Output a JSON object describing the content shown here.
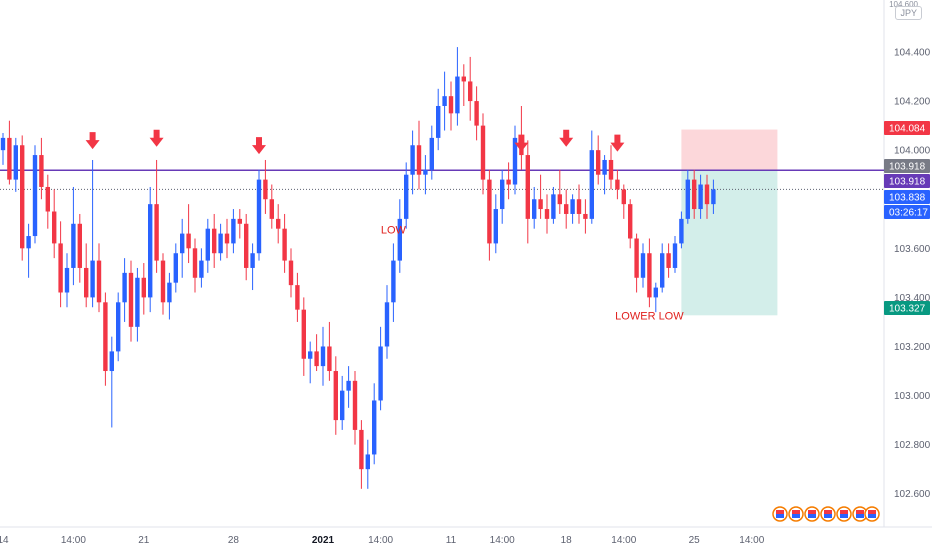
{
  "currency": "JPY",
  "price_top_clipped": "104.600",
  "chart_data": {
    "type": "candlestick",
    "title": "",
    "xlabel": "",
    "ylabel": "",
    "ylim": [
      102.5,
      104.6
    ],
    "y_ticks": [
      "104.400",
      "104.200",
      "104.000",
      "103.800",
      "103.600",
      "103.400",
      "103.200",
      "103.000",
      "102.800",
      "102.600"
    ],
    "x_ticks": [
      {
        "i": 0,
        "label": "14"
      },
      {
        "i": 11,
        "label": "14:00"
      },
      {
        "i": 22,
        "label": "21"
      },
      {
        "i": 36,
        "label": "28"
      },
      {
        "i": 50,
        "label": "2021",
        "bold": true
      },
      {
        "i": 59,
        "label": "14:00"
      },
      {
        "i": 70,
        "label": "11"
      },
      {
        "i": 78,
        "label": "14:00"
      },
      {
        "i": 88,
        "label": "18"
      },
      {
        "i": 97,
        "label": "14:00"
      },
      {
        "i": 108,
        "label": "25"
      },
      {
        "i": 117,
        "label": "14:00"
      }
    ],
    "resistance_level": 103.918,
    "price_labels": [
      {
        "value": "104.084",
        "color": "#f23645"
      },
      {
        "value": "103.918",
        "color": "#787b86"
      },
      {
        "value": "103.918",
        "color": "#673ab7"
      },
      {
        "value": "103.838",
        "color": "#2962ff"
      },
      {
        "value": "03:26:17",
        "color": "#2962ff"
      },
      {
        "value": "103.327",
        "color": "#089981"
      }
    ],
    "position": {
      "entry": 103.918,
      "stop": 104.084,
      "target": 103.327,
      "start_i": 106,
      "end_i": 121
    },
    "annotations": [
      {
        "i": 61,
        "price": 103.66,
        "text": "LOW"
      },
      {
        "i": 101,
        "price": 103.31,
        "text": "LOWER LOW"
      }
    ],
    "arrows": [
      {
        "i": 14,
        "price": 104.0
      },
      {
        "i": 24,
        "price": 104.01
      },
      {
        "i": 40,
        "price": 103.98
      },
      {
        "i": 81,
        "price": 103.99
      },
      {
        "i": 88,
        "price": 104.01
      },
      {
        "i": 96,
        "price": 103.99
      }
    ],
    "colors": {
      "up": "#2962ff",
      "down": "#f23645",
      "resistance": "#673ab7"
    },
    "candles": [
      [
        104.0,
        104.07,
        103.94,
        104.05
      ],
      [
        104.05,
        104.12,
        103.86,
        103.88
      ],
      [
        103.88,
        104.05,
        103.83,
        104.02
      ],
      [
        104.02,
        104.06,
        103.55,
        103.6
      ],
      [
        103.6,
        103.7,
        103.48,
        103.65
      ],
      [
        103.65,
        104.02,
        103.62,
        103.98
      ],
      [
        103.98,
        104.05,
        103.8,
        103.85
      ],
      [
        103.85,
        103.9,
        103.68,
        103.75
      ],
      [
        103.75,
        103.84,
        103.56,
        103.62
      ],
      [
        103.62,
        103.71,
        103.36,
        103.42
      ],
      [
        103.42,
        103.58,
        103.36,
        103.52
      ],
      [
        103.52,
        103.85,
        103.45,
        103.7
      ],
      [
        103.7,
        103.74,
        103.46,
        103.52
      ],
      [
        103.52,
        103.62,
        103.36,
        103.4
      ],
      [
        103.4,
        103.96,
        103.36,
        103.55
      ],
      [
        103.55,
        103.62,
        103.34,
        103.38
      ],
      [
        103.38,
        103.42,
        103.04,
        103.1
      ],
      [
        103.1,
        103.24,
        102.87,
        103.18
      ],
      [
        103.18,
        103.42,
        103.14,
        103.38
      ],
      [
        103.38,
        103.56,
        103.3,
        103.5
      ],
      [
        103.5,
        103.55,
        103.22,
        103.28
      ],
      [
        103.28,
        103.52,
        103.22,
        103.48
      ],
      [
        103.48,
        103.54,
        103.33,
        103.4
      ],
      [
        103.4,
        103.85,
        103.34,
        103.78
      ],
      [
        103.78,
        103.96,
        103.5,
        103.55
      ],
      [
        103.55,
        103.58,
        103.33,
        103.38
      ],
      [
        103.38,
        103.5,
        103.31,
        103.46
      ],
      [
        103.46,
        103.62,
        103.42,
        103.58
      ],
      [
        103.58,
        103.72,
        103.48,
        103.66
      ],
      [
        103.66,
        103.78,
        103.54,
        103.6
      ],
      [
        103.6,
        103.64,
        103.42,
        103.48
      ],
      [
        103.48,
        103.6,
        103.44,
        103.55
      ],
      [
        103.55,
        103.72,
        103.5,
        103.68
      ],
      [
        103.68,
        103.74,
        103.52,
        103.58
      ],
      [
        103.58,
        103.7,
        103.55,
        103.66
      ],
      [
        103.66,
        103.72,
        103.56,
        103.62
      ],
      [
        103.62,
        103.76,
        103.58,
        103.72
      ],
      [
        103.72,
        103.76,
        103.64,
        103.7
      ],
      [
        103.7,
        103.74,
        103.47,
        103.52
      ],
      [
        103.52,
        103.62,
        103.43,
        103.58
      ],
      [
        103.58,
        103.92,
        103.55,
        103.88
      ],
      [
        103.88,
        103.96,
        103.74,
        103.8
      ],
      [
        103.8,
        103.86,
        103.68,
        103.72
      ],
      [
        103.72,
        103.78,
        103.62,
        103.68
      ],
      [
        103.68,
        103.74,
        103.5,
        103.55
      ],
      [
        103.55,
        103.6,
        103.4,
        103.45
      ],
      [
        103.45,
        103.5,
        103.3,
        103.35
      ],
      [
        103.35,
        103.4,
        103.08,
        103.15
      ],
      [
        103.15,
        103.22,
        103.05,
        103.18
      ],
      [
        103.18,
        103.25,
        103.1,
        103.12
      ],
      [
        103.12,
        103.28,
        103.04,
        103.2
      ],
      [
        103.2,
        103.3,
        103.06,
        103.1
      ],
      [
        103.1,
        103.16,
        102.84,
        102.9
      ],
      [
        102.9,
        103.08,
        102.86,
        103.02
      ],
      [
        103.02,
        103.12,
        102.95,
        103.06
      ],
      [
        103.06,
        103.1,
        102.8,
        102.86
      ],
      [
        102.86,
        102.9,
        102.62,
        102.7
      ],
      [
        102.7,
        102.82,
        102.62,
        102.76
      ],
      [
        102.76,
        103.05,
        102.72,
        102.98
      ],
      [
        102.98,
        103.28,
        102.94,
        103.2
      ],
      [
        103.2,
        103.45,
        103.15,
        103.38
      ],
      [
        103.38,
        103.62,
        103.3,
        103.55
      ],
      [
        103.55,
        103.8,
        103.5,
        103.72
      ],
      [
        103.72,
        103.95,
        103.68,
        103.9
      ],
      [
        103.9,
        104.08,
        103.82,
        104.02
      ],
      [
        104.02,
        104.12,
        103.84,
        103.9
      ],
      [
        103.9,
        103.98,
        103.82,
        103.92
      ],
      [
        103.92,
        104.1,
        103.88,
        104.05
      ],
      [
        104.05,
        104.25,
        104.0,
        104.18
      ],
      [
        104.18,
        104.32,
        104.08,
        104.22
      ],
      [
        104.22,
        104.28,
        104.08,
        104.15
      ],
      [
        104.15,
        104.42,
        104.1,
        104.3
      ],
      [
        104.3,
        104.35,
        104.18,
        104.28
      ],
      [
        104.28,
        104.38,
        104.12,
        104.2
      ],
      [
        104.2,
        104.26,
        104.04,
        104.1
      ],
      [
        104.1,
        104.15,
        103.82,
        103.88
      ],
      [
        103.88,
        103.92,
        103.55,
        103.62
      ],
      [
        103.62,
        103.82,
        103.58,
        103.76
      ],
      [
        103.76,
        103.92,
        103.7,
        103.88
      ],
      [
        103.88,
        103.95,
        103.8,
        103.86
      ],
      [
        103.86,
        104.1,
        103.82,
        104.05
      ],
      [
        104.05,
        104.18,
        103.92,
        103.98
      ],
      [
        103.98,
        104.04,
        103.62,
        103.72
      ],
      [
        103.72,
        103.85,
        103.68,
        103.8
      ],
      [
        103.8,
        103.9,
        103.72,
        103.76
      ],
      [
        103.76,
        103.82,
        103.66,
        103.72
      ],
      [
        103.72,
        103.85,
        103.7,
        103.82
      ],
      [
        103.82,
        103.92,
        103.74,
        103.78
      ],
      [
        103.78,
        103.84,
        103.68,
        103.74
      ],
      [
        103.74,
        103.82,
        103.7,
        103.8
      ],
      [
        103.8,
        103.86,
        103.7,
        103.74
      ],
      [
        103.74,
        103.8,
        103.66,
        103.72
      ],
      [
        103.72,
        104.08,
        103.7,
        104.0
      ],
      [
        104.0,
        104.06,
        103.86,
        103.9
      ],
      [
        103.9,
        103.98,
        103.82,
        103.96
      ],
      [
        103.96,
        104.02,
        103.84,
        103.88
      ],
      [
        103.88,
        103.92,
        103.8,
        103.84
      ],
      [
        103.84,
        103.86,
        103.72,
        103.78
      ],
      [
        103.78,
        103.8,
        103.6,
        103.64
      ],
      [
        103.64,
        103.66,
        103.42,
        103.48
      ],
      [
        103.48,
        103.62,
        103.44,
        103.58
      ],
      [
        103.58,
        103.64,
        103.36,
        103.4
      ],
      [
        103.4,
        103.46,
        103.34,
        103.44
      ],
      [
        103.44,
        103.62,
        103.42,
        103.58
      ],
      [
        103.58,
        103.62,
        103.48,
        103.52
      ],
      [
        103.52,
        103.65,
        103.5,
        103.62
      ],
      [
        103.62,
        103.75,
        103.6,
        103.72
      ],
      [
        103.72,
        103.92,
        103.7,
        103.88
      ],
      [
        103.88,
        103.92,
        103.72,
        103.76
      ],
      [
        103.76,
        103.9,
        103.72,
        103.86
      ],
      [
        103.86,
        103.9,
        103.72,
        103.78
      ],
      [
        103.78,
        103.88,
        103.74,
        103.84
      ]
    ]
  }
}
